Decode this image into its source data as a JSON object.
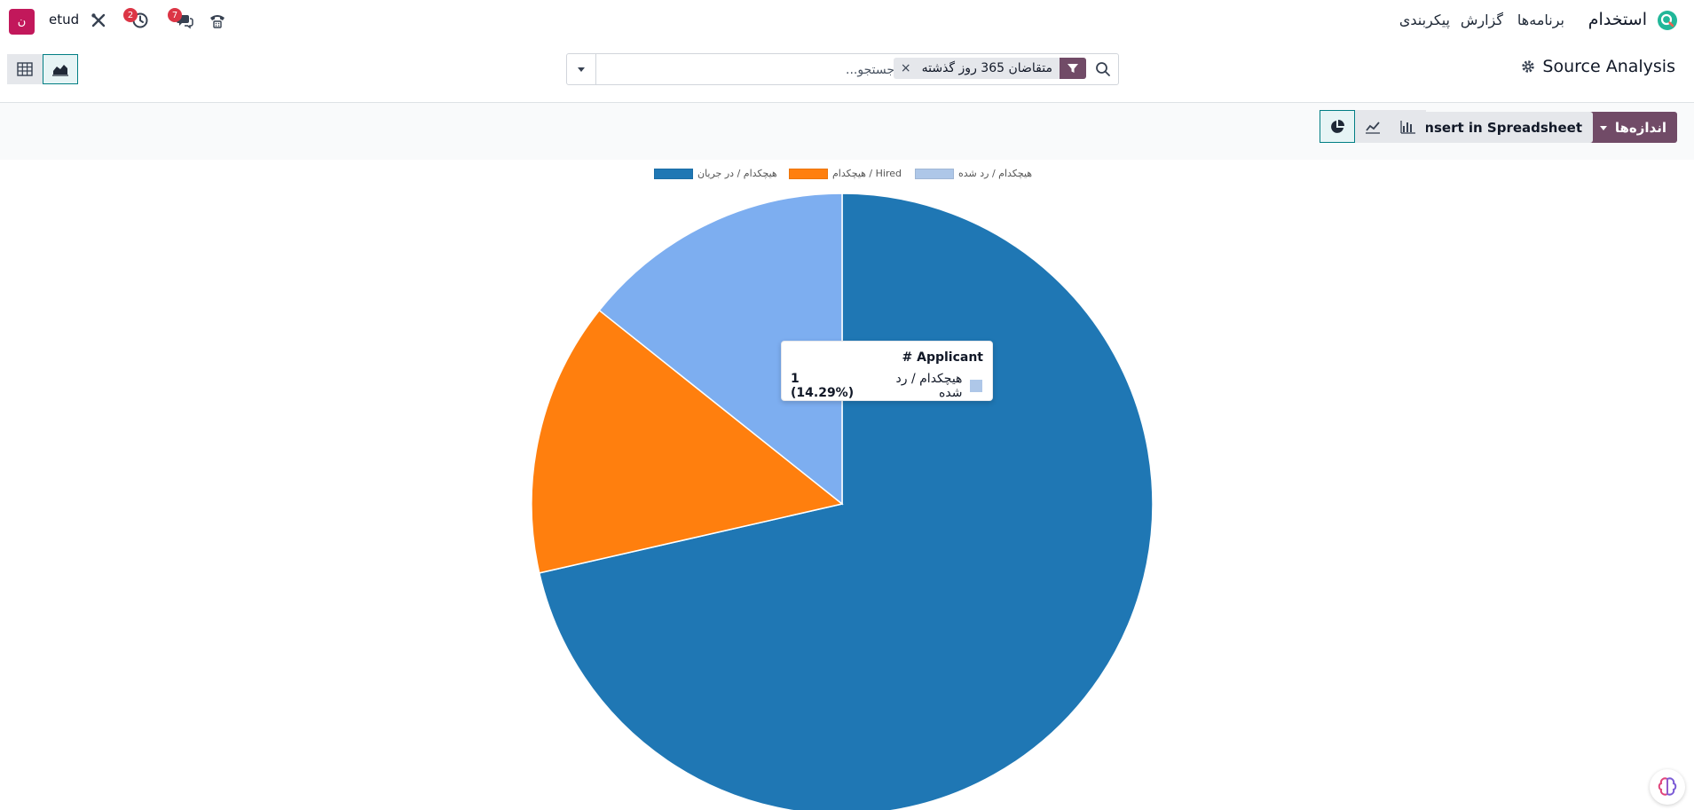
{
  "navbar": {
    "app_name": "استخدام",
    "menu": [
      "برنامه‌ها",
      "گزارش",
      "پیکربندی"
    ],
    "messages_count": "7",
    "activities_count": "2",
    "company": "etud",
    "avatar_letter": "ن"
  },
  "control_panel": {
    "breadcrumb": "Source Analysis",
    "filter_facet": "متقاضان 365 روز گذشته",
    "search_placeholder": "جستجو..."
  },
  "toolbar": {
    "measures_label": "اندازه‌ها",
    "spreadsheet_label": "Insert in Spreadsheet"
  },
  "tooltip": {
    "title": "# Applicant",
    "label": "هیچکدام / رد شده",
    "value": "1 (14.29%)"
  },
  "colors": {
    "brand": "#714b67",
    "accent": "#017e84"
  },
  "chart_data": {
    "type": "pie",
    "title": "",
    "legend_position": "top",
    "series": [
      {
        "name": "هیچکدام / در جریان",
        "value": 5,
        "color": "#1f77b4"
      },
      {
        "name": "هیچکدام / Hired",
        "value": 1,
        "color": "#ff7f0e"
      },
      {
        "name": "هیچکدام / رد شده",
        "value": 1,
        "color": "#7daef0"
      }
    ]
  }
}
